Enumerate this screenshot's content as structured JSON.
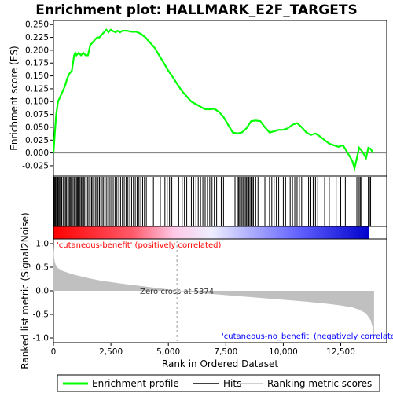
{
  "chart_data": {
    "type": "line",
    "title": "Enrichment plot: HALLMARK_E2F_TARGETS",
    "top_panel": {
      "ylabel": "Enrichment score (ES)",
      "ylim": [
        -0.045,
        0.258
      ],
      "yticks": [
        -0.025,
        0.0,
        0.025,
        0.05,
        0.075,
        0.1,
        0.125,
        0.15,
        0.175,
        0.2,
        0.225,
        0.25
      ],
      "ytick_labels": [
        "-0.025",
        "0.000",
        "0.025",
        "0.050",
        "0.075",
        "0.100",
        "0.125",
        "0.150",
        "0.175",
        "0.200",
        "0.225",
        "0.250"
      ],
      "series": [
        {
          "name": "Enrichment profile",
          "color": "#00ff00",
          "x": [
            0,
            60,
            120,
            200,
            300,
            400,
            500,
            600,
            700,
            800,
            900,
            950,
            1000,
            1100,
            1200,
            1300,
            1400,
            1500,
            1600,
            1700,
            1800,
            1900,
            2000,
            2100,
            2200,
            2300,
            2400,
            2500,
            2600,
            2700,
            2800,
            2900,
            3000,
            3200,
            3400,
            3600,
            3800,
            4000,
            4200,
            4400,
            4600,
            4800,
            5000,
            5200,
            5374,
            5600,
            5800,
            6000,
            6200,
            6400,
            6600,
            6800,
            7000,
            7200,
            7400,
            7600,
            7800,
            8000,
            8200,
            8400,
            8600,
            8800,
            9000,
            9200,
            9400,
            9600,
            9800,
            10000,
            10200,
            10400,
            10600,
            10800,
            11000,
            11200,
            11400,
            11600,
            11800,
            12000,
            12200,
            12400,
            12600,
            12800,
            13000,
            13100,
            13200,
            13300,
            13400,
            13500,
            13600,
            13700,
            13800,
            13900
          ],
          "y": [
            0.0,
            0.04,
            0.075,
            0.1,
            0.11,
            0.12,
            0.13,
            0.145,
            0.155,
            0.16,
            0.19,
            0.195,
            0.19,
            0.195,
            0.19,
            0.195,
            0.19,
            0.19,
            0.21,
            0.215,
            0.22,
            0.225,
            0.225,
            0.23,
            0.235,
            0.24,
            0.235,
            0.24,
            0.237,
            0.235,
            0.238,
            0.235,
            0.238,
            0.238,
            0.236,
            0.236,
            0.232,
            0.225,
            0.215,
            0.205,
            0.19,
            0.175,
            0.16,
            0.147,
            0.135,
            0.12,
            0.11,
            0.1,
            0.095,
            0.09,
            0.085,
            0.085,
            0.086,
            0.08,
            0.07,
            0.055,
            0.04,
            0.038,
            0.04,
            0.048,
            0.062,
            0.063,
            0.062,
            0.05,
            0.04,
            0.042,
            0.045,
            0.045,
            0.048,
            0.055,
            0.058,
            0.05,
            0.04,
            0.035,
            0.038,
            0.032,
            0.025,
            0.018,
            0.015,
            0.012,
            0.015,
            0.0,
            -0.015,
            -0.03,
            -0.01,
            0.01,
            0.005,
            -0.002,
            -0.01,
            0.01,
            0.008,
            0.0
          ]
        }
      ]
    },
    "hits_panel": {
      "hit_positions": [
        30,
        60,
        90,
        130,
        170,
        200,
        240,
        280,
        320,
        360,
        420,
        470,
        520,
        560,
        620,
        680,
        720,
        760,
        800,
        850,
        900,
        950,
        1000,
        1040,
        1080,
        1120,
        1160,
        1210,
        1260,
        1310,
        1360,
        1420,
        1480,
        1540,
        1600,
        1660,
        1710,
        1760,
        1820,
        1880,
        1940,
        2000,
        2060,
        2120,
        2180,
        2250,
        2320,
        2390,
        2460,
        2530,
        2600,
        2680,
        2760,
        2840,
        2920,
        3000,
        3080,
        3160,
        3240,
        3320,
        3400,
        3480,
        3560,
        3640,
        3720,
        3800,
        3880,
        3960,
        4040,
        4350,
        4650,
        4850,
        4950,
        5050,
        5150,
        5250,
        5450,
        5600,
        5700,
        5800,
        5900,
        6000,
        6100,
        6200,
        6300,
        6400,
        6500,
        6600,
        6700,
        6800,
        6900,
        7000,
        7100,
        7300,
        7400,
        7900,
        8000,
        8050,
        8100,
        8150,
        8200,
        8250,
        8300,
        8350,
        8400,
        8450,
        8500,
        8550,
        8600,
        8650,
        8700,
        8800,
        8900,
        9200,
        9400,
        9500,
        9600,
        9700,
        9800,
        9900,
        10000,
        10100,
        10300,
        10400,
        10500,
        10600,
        10700,
        10800,
        11100,
        11200,
        11300,
        11400,
        11500,
        11800,
        12000,
        12300,
        12500,
        12700,
        13200,
        13250,
        13300,
        13350,
        13400,
        13700,
        13750,
        13800
      ]
    },
    "rank_metric_panel": {
      "ylabel": "Ranked list metric (Signal2Noise)",
      "xlabel": "Rank in Ordered Dataset",
      "ylim": [
        -1.1,
        1.1
      ],
      "yticks": [
        -1.0,
        -0.5,
        0.0,
        0.5,
        1.0
      ],
      "ytick_labels": [
        "-1.0",
        "-0.5",
        "0.0",
        "0.5",
        "1.0"
      ],
      "xlim": [
        0,
        14500
      ],
      "xticks": [
        0,
        2500,
        5000,
        7500,
        10000,
        12500
      ],
      "xtick_labels": [
        "0",
        "2,500",
        "5,000",
        "7,500",
        "10,000",
        "12,500"
      ],
      "metric_x": [
        0,
        20,
        50,
        100,
        200,
        400,
        700,
        1000,
        1500,
        2000,
        3000,
        4000,
        5000,
        5374,
        6000,
        7000,
        8000,
        9000,
        10000,
        11000,
        12000,
        12500,
        13000,
        13300,
        13600,
        13800,
        13900,
        13950
      ],
      "metric_y": [
        1.0,
        0.75,
        0.62,
        0.55,
        0.48,
        0.42,
        0.37,
        0.33,
        0.27,
        0.22,
        0.15,
        0.09,
        0.03,
        0.0,
        -0.03,
        -0.07,
        -0.11,
        -0.15,
        -0.19,
        -0.23,
        -0.28,
        -0.31,
        -0.35,
        -0.4,
        -0.48,
        -0.62,
        -0.8,
        -1.0
      ],
      "zero_cross_rank": 5374,
      "zero_cross_label": "Zero cross at 5374",
      "pos_label": "'cutaneous-benefit' (positively correlated)",
      "neg_label": "'cutaneous-no_benefit' (negatively correlated)",
      "pos_color": "#ff0000",
      "neg_color": "#0000ff",
      "metric_fill_color": "#c0c0c0"
    },
    "legend": {
      "placement": "bottom",
      "items": [
        {
          "label": "Enrichment profile",
          "color": "#00ff00"
        },
        {
          "label": "Hits",
          "color": "#000000"
        },
        {
          "label": "Ranking metric scores",
          "color": "#c0c0c0"
        }
      ]
    }
  }
}
